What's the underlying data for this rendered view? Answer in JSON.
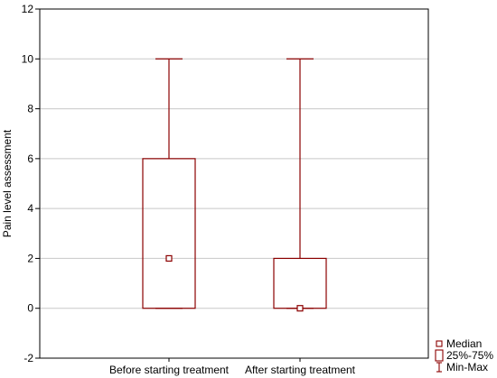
{
  "chart_data": {
    "type": "boxplot",
    "title": "",
    "xlabel": "",
    "ylabel": "Pain level assessment",
    "ylim": [
      -2,
      12
    ],
    "yticks": [
      -2,
      0,
      2,
      4,
      6,
      8,
      10,
      12
    ],
    "grid": true,
    "categories": [
      "Before starting treatment",
      "After starting treatment"
    ],
    "boxes": [
      {
        "category": "Before starting treatment",
        "min": 0,
        "q1": 0,
        "median": 2,
        "q3": 6,
        "max": 10
      },
      {
        "category": "After starting treatment",
        "min": 0,
        "q1": 0,
        "median": 0,
        "q3": 2,
        "max": 10
      }
    ],
    "legend": {
      "placement": "bottom-right",
      "items": [
        {
          "label": "Median",
          "icon": "small-square"
        },
        {
          "label": "25%-75%",
          "icon": "box"
        },
        {
          "label": "Min-Max",
          "icon": "whisker"
        }
      ]
    },
    "colors": {
      "series": "#8b0000",
      "grid": "#c8c8c8",
      "axis": "#000000"
    }
  }
}
